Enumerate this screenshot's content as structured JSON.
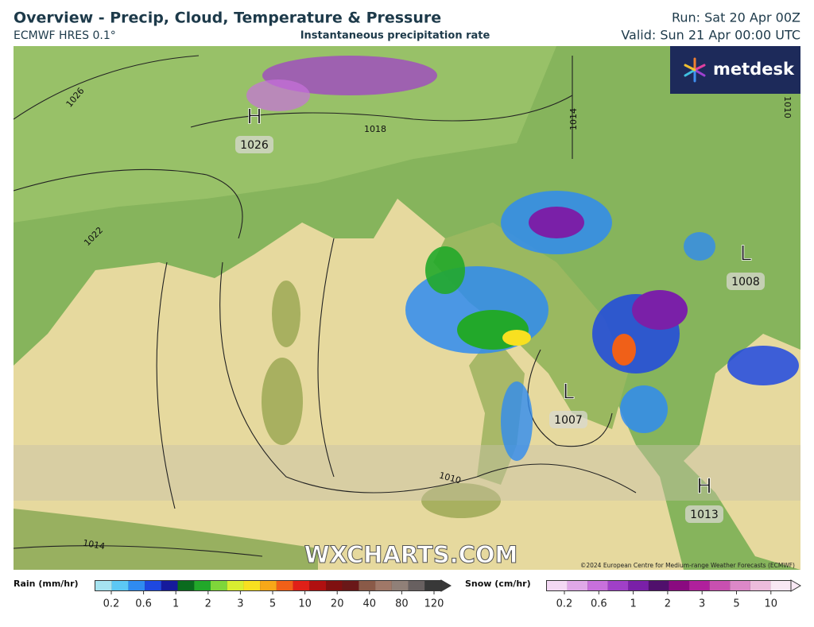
{
  "header": {
    "title": "Overview - Precip, Cloud, Temperature & Pressure",
    "model": "ECMWF HRES 0.1°",
    "subtitle": "Instantaneous precipitation rate",
    "run": "Run: Sat 20 Apr 00Z",
    "valid": "Valid: Sun 21 Apr 00:00 UTC"
  },
  "map": {
    "logo": "metdesk",
    "watermark": "WXCHARTS.COM",
    "copyright": "©2024 European Centre for Medium-range Weather Forecasts (ECMWF)",
    "pressure_centers": [
      {
        "symbol": "H",
        "value": "1026"
      },
      {
        "symbol": "L",
        "value": "1008"
      },
      {
        "symbol": "L",
        "value": "1007"
      },
      {
        "symbol": "H",
        "value": "1013"
      }
    ],
    "isobar_labels": [
      "1026",
      "1018",
      "1014",
      "1010",
      "1022",
      "1010",
      "1014"
    ]
  },
  "legend": {
    "rain": {
      "title": "Rain (mm/hr)",
      "labels": [
        "0.2",
        "0.6",
        "1",
        "2",
        "3",
        "5",
        "10",
        "20",
        "40",
        "80",
        "120"
      ],
      "colors": [
        "#a6e3f0",
        "#5cc8f5",
        "#2f8bf0",
        "#1e48e0",
        "#161a9c",
        "#0a6b1e",
        "#22a82a",
        "#7fd63a",
        "#d8ee30",
        "#f8e020",
        "#f8a818",
        "#f06018",
        "#e02018",
        "#b01010",
        "#801010",
        "#6a1818",
        "#8a5a48",
        "#a07868",
        "#908078",
        "#686060",
        "#383838"
      ]
    },
    "snow": {
      "title": "Snow (cm/hr)",
      "labels": [
        "0.2",
        "0.6",
        "1",
        "2",
        "3",
        "5",
        "10"
      ],
      "colors": [
        "#f4d8f4",
        "#e0a8e8",
        "#c870dc",
        "#a040c8",
        "#7a20a8",
        "#50106c",
        "#8a0a80",
        "#b0209c",
        "#c850b0",
        "#dc88c8",
        "#ecbcdc",
        "#f8e8f4"
      ]
    }
  }
}
